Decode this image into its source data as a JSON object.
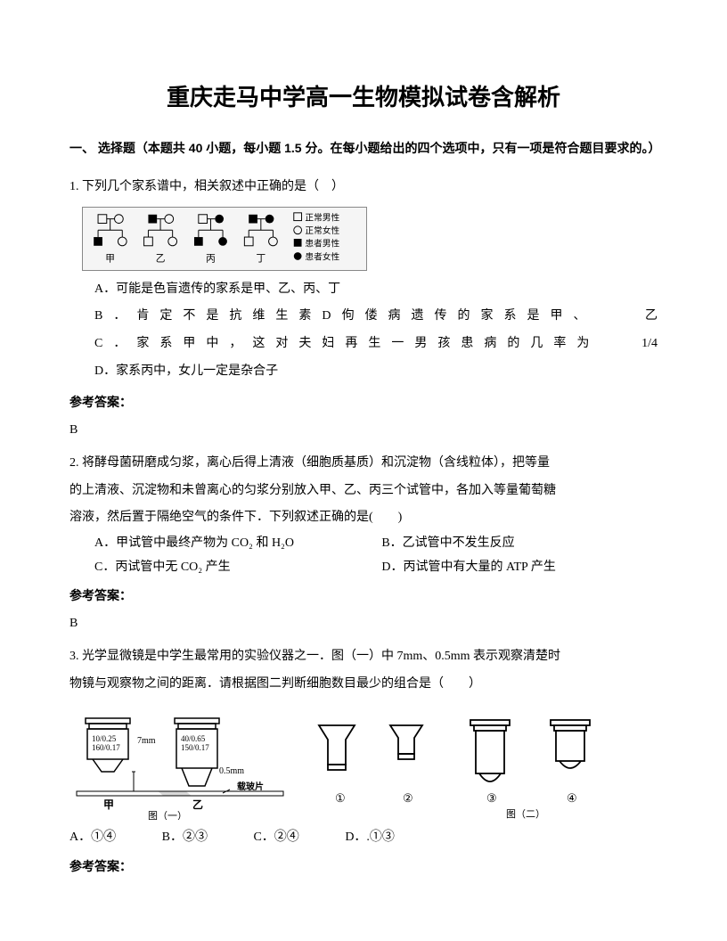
{
  "title": "重庆走马中学高一生物模拟试卷含解析",
  "section": "一、 选择题（本题共 40 小题，每小题 1.5 分。在每小题给出的四个选项中，只有一项是符合题目要求的。）",
  "q1": {
    "num": "1.",
    "text": "下列几个家系谱中，相关叙述中正确的是（　）",
    "legend": {
      "normal_male": "正常男性",
      "normal_female": "正常女性",
      "affected_male": "患者男性",
      "affected_female": "患者女性"
    },
    "labels": {
      "a": "甲",
      "b": "乙",
      "c": "丙",
      "d": "丁"
    },
    "opts": {
      "A": "A．可能是色盲遗传的家系是甲、乙、丙、丁",
      "B_head": "B．肯定不是抗维生素D佝偻病遗传的家系是甲、",
      "B_tail": "乙",
      "C_head": "C．家系甲中，这对夫妇再生一男孩患病的几率为",
      "C_tail": "1/4",
      "D": "D．家系丙中，女儿一定是杂合子"
    },
    "ans_label": "参考答案：",
    "ans": "B"
  },
  "q2": {
    "num": "2.",
    "text_l1": "将酵母菌研磨成匀浆，离心后得上清液（细胞质基质）和沉淀物（含线粒体），把等量",
    "text_l2": "的上清液、沉淀物和未曾离心的匀浆分别放入甲、乙、丙三个试管中，各加入等量葡萄糖",
    "text_l3": "溶液，然后置于隔绝空气的条件下．下列叙述正确的是(　　)",
    "opt_A": "A．甲试管中最终产物为 CO₂ 和 H₂O",
    "opt_B": "B．乙试管中不发生反应",
    "opt_C": "C．丙试管中无 CO₂ 产生",
    "opt_D": "D．丙试管中有大量的 ATP 产生",
    "ans_label": "参考答案：",
    "ans": "B"
  },
  "q3": {
    "num": "3.",
    "text_l1": "光学显微镜是中学生最常用的实验仪器之一．图（一）中 7mm、0.5mm 表示观察清楚时",
    "text_l2": "物镜与观察物之间的距离．请根据图二判断细胞数目最少的组合是（　　）",
    "fig1": {
      "left_label": "10/0.25\n160/0.17",
      "right_label": "40/0.65\n150/0.17",
      "dist_a": "7mm",
      "dist_b": "0.5mm",
      "slide": "载玻片",
      "cap_a": "甲",
      "cap_b": "乙",
      "caption": "图（一）"
    },
    "fig2": {
      "nums": [
        "①",
        "②",
        "③",
        "④"
      ],
      "caption": "图（二）"
    },
    "choices": {
      "A": "A．①④",
      "B": "B．②③",
      "C": "C．②④",
      "D": "D．.①③"
    },
    "ans_label": "参考答案："
  },
  "style": {
    "text_color": "#000000",
    "bg": "#ffffff",
    "box_border": "#888888",
    "box_bg": "#f5f5f5",
    "title_fontsize": 26,
    "body_fontsize": 14
  }
}
